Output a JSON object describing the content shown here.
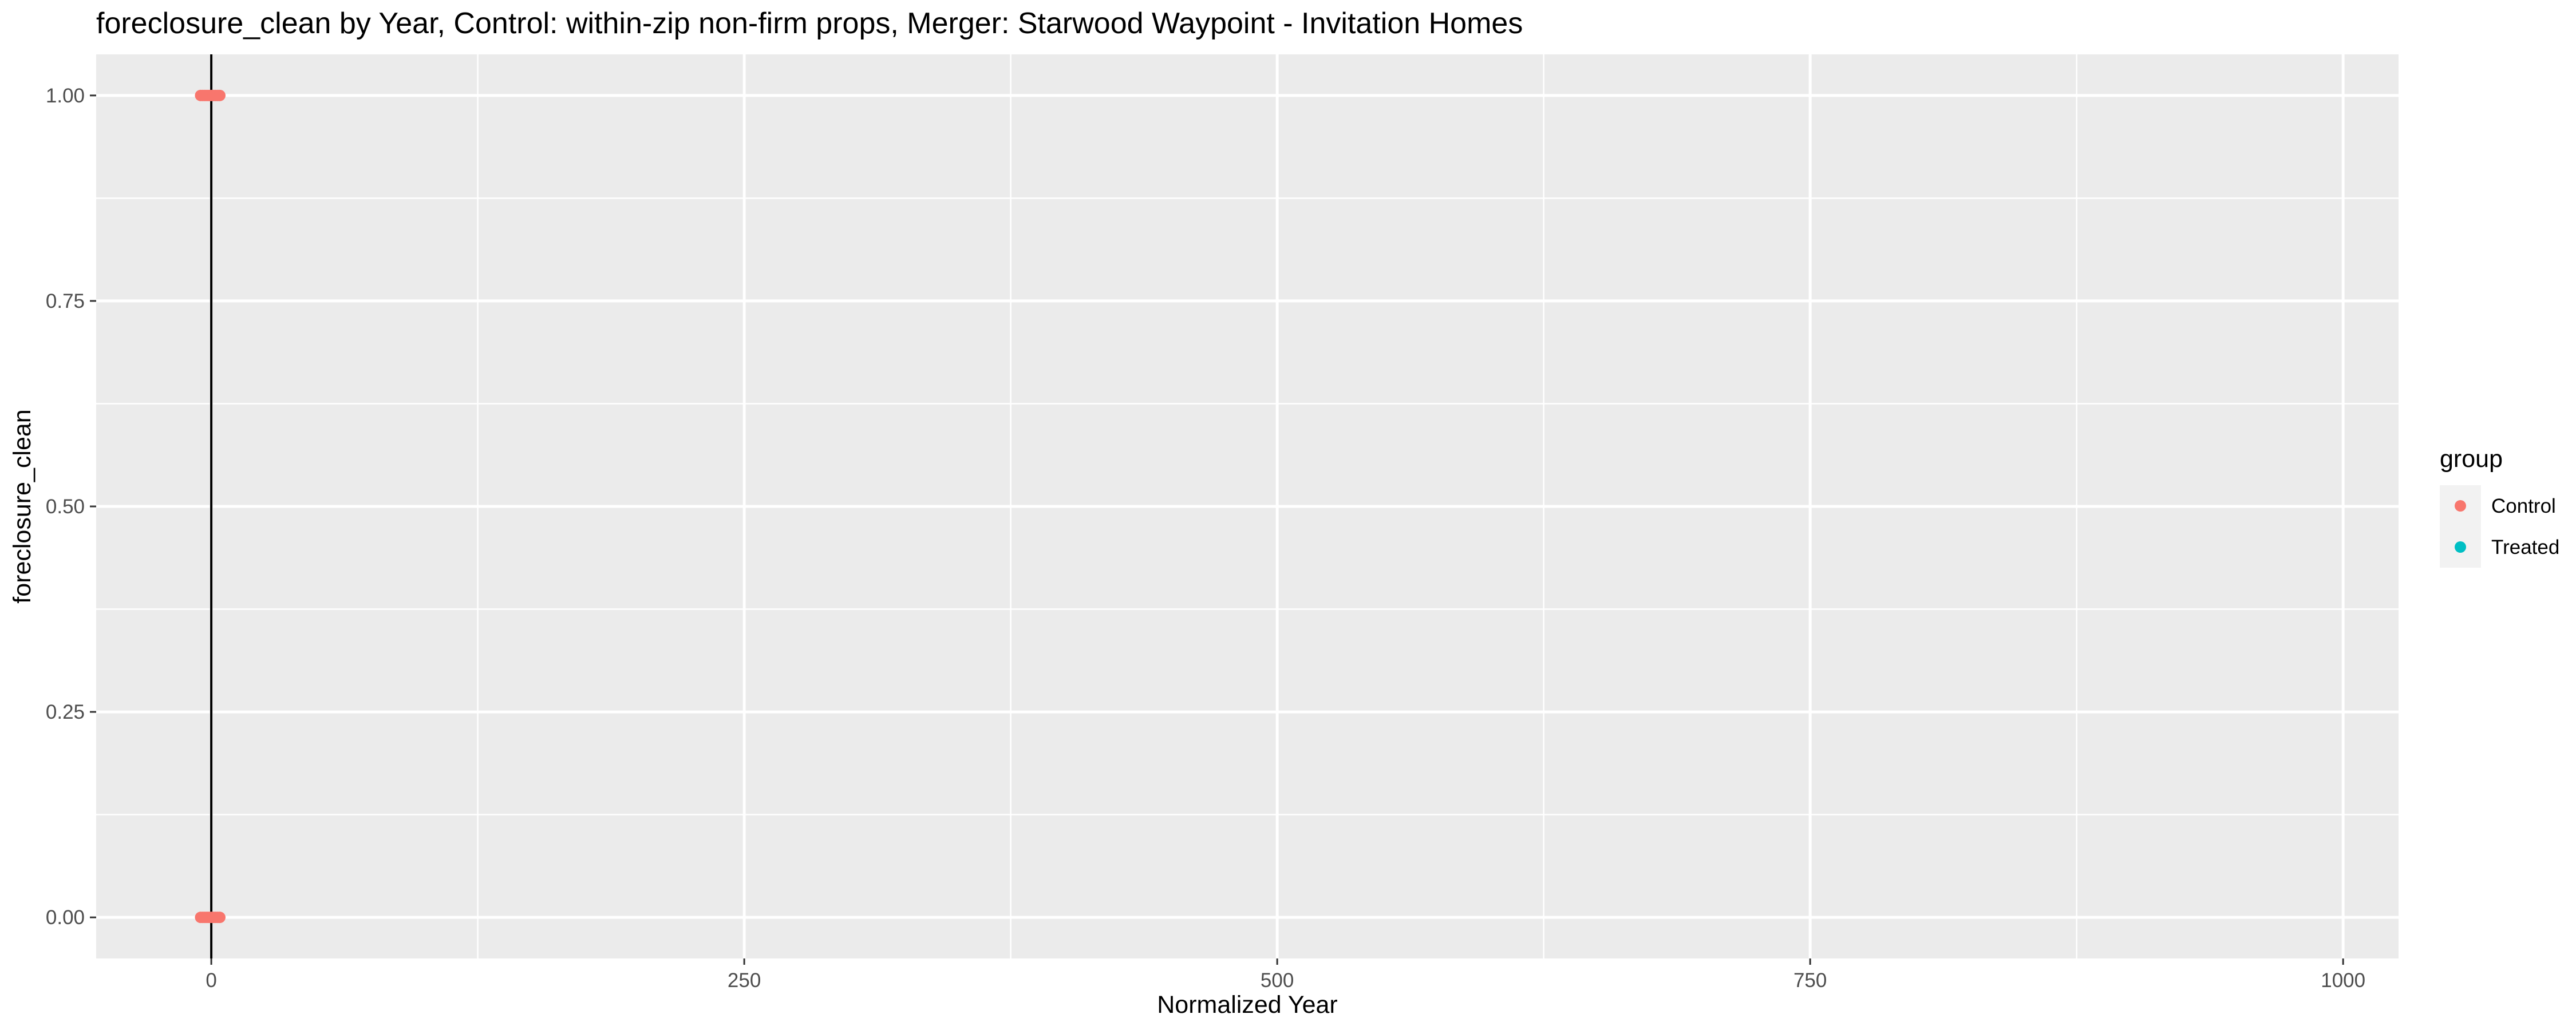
{
  "chart_data": {
    "type": "scatter",
    "title": "foreclosure_clean by Year, Control: within-zip non-firm props, Merger: Starwood Waypoint - Invitation Homes",
    "xlabel": "Normalized Year",
    "ylabel": "foreclosure_clean",
    "xlim": [
      -54,
      1026
    ],
    "ylim": [
      -0.05,
      1.05
    ],
    "x_ticks": [
      0,
      250,
      500,
      750,
      1000
    ],
    "x_tick_labels": [
      "0",
      "250",
      "500",
      "750",
      "1000"
    ],
    "y_ticks": [
      0,
      0.25,
      0.5,
      0.75,
      1
    ],
    "y_tick_labels": [
      "0.00",
      "0.25",
      "0.50",
      "0.75",
      "1.00"
    ],
    "x_minor_ticks": [
      125,
      375,
      625,
      875
    ],
    "y_minor_ticks": [
      0.125,
      0.375,
      0.625,
      0.875
    ],
    "vline": 0,
    "grid": true,
    "legend": {
      "title": "group",
      "position": "right",
      "entries": [
        {
          "label": "Control",
          "color": "#F8766D"
        },
        {
          "label": "Treated",
          "color": "#00BFC4"
        }
      ]
    },
    "series": [
      {
        "name": "Control",
        "color": "#F8766D",
        "points": [
          {
            "x": -5,
            "y": 1
          },
          {
            "x": -4,
            "y": 1
          },
          {
            "x": -3,
            "y": 1
          },
          {
            "x": -2,
            "y": 1
          },
          {
            "x": -1,
            "y": 1
          },
          {
            "x": 0,
            "y": 1
          },
          {
            "x": 1,
            "y": 1
          },
          {
            "x": 2,
            "y": 1
          },
          {
            "x": 3,
            "y": 1
          },
          {
            "x": 4,
            "y": 1
          },
          {
            "x": -5,
            "y": 0
          },
          {
            "x": -4,
            "y": 0
          },
          {
            "x": -3,
            "y": 0
          },
          {
            "x": -2,
            "y": 0
          },
          {
            "x": -1,
            "y": 0
          },
          {
            "x": 0,
            "y": 0
          },
          {
            "x": 1,
            "y": 0
          },
          {
            "x": 2,
            "y": 0
          },
          {
            "x": 3,
            "y": 0
          },
          {
            "x": 4,
            "y": 0
          }
        ]
      },
      {
        "name": "Treated",
        "color": "#00BFC4",
        "points": []
      }
    ]
  }
}
